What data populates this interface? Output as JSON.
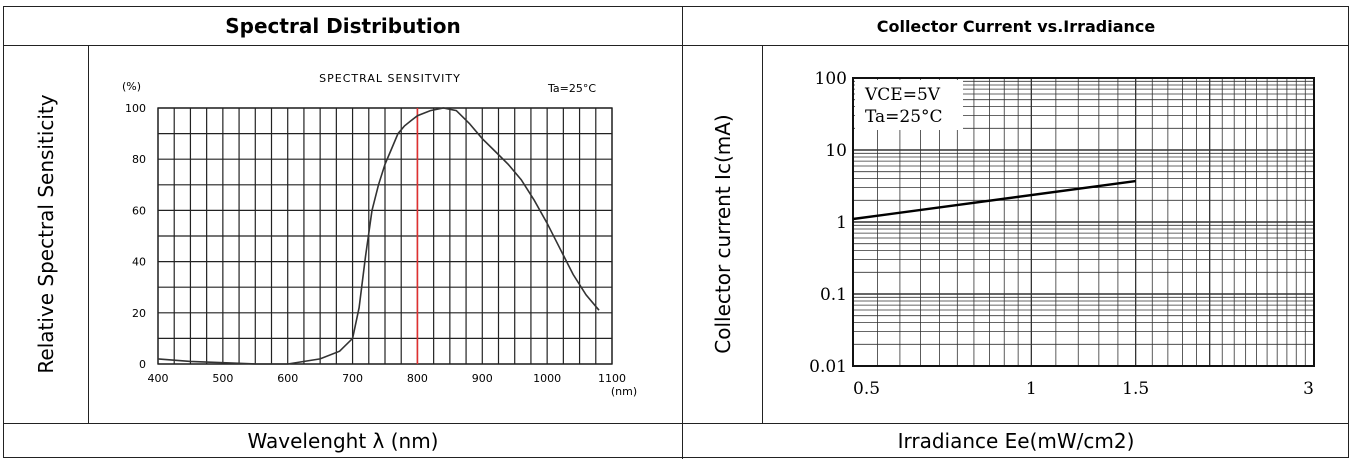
{
  "headers": {
    "left": "Spectral Distribution",
    "right": "Collector Current vs.Irradiance"
  },
  "footers": {
    "left": "Wavelenght λ  (nm)",
    "right": "Irradiance Ee(mW/cm2)"
  },
  "row_labels": {
    "left": "Relative Spectral Sensiticity",
    "right": "Collector current Ic(mA)"
  },
  "chart_data": [
    {
      "type": "line",
      "title": "SPECTRAL SENSITVITY",
      "condition": "Ta=25°C",
      "xlabel": "",
      "ylabel": "",
      "y_unit_label": "(%)",
      "x_unit_label": "(nm)",
      "xlim": [
        400,
        1100
      ],
      "ylim": [
        0,
        100
      ],
      "x_ticks": [
        "400",
        "500",
        "600",
        "700",
        "800",
        "900",
        "1000",
        "1100"
      ],
      "y_ticks": [
        "0",
        "20",
        "40",
        "60",
        "80",
        "100"
      ],
      "grid": true,
      "marker_line": {
        "x": 800,
        "color": "#e03030"
      },
      "series": [
        {
          "x": [
            400,
            450,
            500,
            550,
            600,
            650,
            680,
            700,
            710,
            720,
            730,
            740,
            750,
            760,
            770,
            780,
            790,
            800,
            820,
            840,
            860,
            880,
            900,
            920,
            940,
            960,
            980,
            1000,
            1020,
            1040,
            1060,
            1080
          ],
          "values": [
            2,
            1,
            0.5,
            0,
            0,
            2,
            5,
            10,
            22,
            42,
            60,
            70,
            78,
            84,
            90,
            93,
            95,
            97,
            99,
            100,
            99,
            94,
            88,
            83,
            78,
            72,
            64,
            55,
            45,
            35,
            27,
            21
          ]
        }
      ]
    },
    {
      "type": "line",
      "title": "",
      "annotation": [
        "VCE=5V",
        "Ta=25°C"
      ],
      "xlabel": "",
      "ylabel": "",
      "xscale": "log",
      "yscale": "log",
      "xlim": [
        0.5,
        3
      ],
      "ylim": [
        0.01,
        100
      ],
      "x_ticks": [
        "0.5",
        "1",
        "1.5",
        "3"
      ],
      "y_ticks": [
        "0.01",
        "0.1",
        "1",
        "10",
        "100"
      ],
      "grid": true,
      "series": [
        {
          "x": [
            0.5,
            1.5
          ],
          "values": [
            1.1,
            3.7
          ]
        }
      ]
    }
  ]
}
